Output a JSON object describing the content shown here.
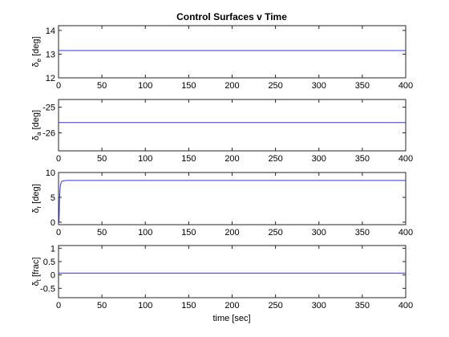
{
  "title": "Control Surfaces v Time",
  "xlabel": "time [sec]",
  "colors": {
    "line": "#3333ee",
    "axis": "#262626"
  },
  "chart_data": [
    {
      "type": "line",
      "title": "Control Surfaces v Time",
      "ylabel": {
        "sym": "δ",
        "sub": "e",
        "unit": " [deg]"
      },
      "xlim": [
        0,
        400
      ],
      "ylim": [
        12,
        14.2
      ],
      "xticks": [
        0,
        50,
        100,
        150,
        200,
        250,
        300,
        350,
        400
      ],
      "yticks": [
        12,
        13,
        14
      ],
      "series": [
        {
          "x": [
            0,
            400
          ],
          "y": [
            13.15,
            13.15
          ]
        }
      ]
    },
    {
      "type": "line",
      "ylabel": {
        "sym": "δ",
        "sub": "a",
        "unit": " [deg]"
      },
      "xlim": [
        0,
        400
      ],
      "ylim": [
        -26.7,
        -24.7
      ],
      "xticks": [
        0,
        50,
        100,
        150,
        200,
        250,
        300,
        350,
        400
      ],
      "yticks": [
        -26,
        -25
      ],
      "series": [
        {
          "x": [
            0,
            400
          ],
          "y": [
            -25.6,
            -25.6
          ]
        }
      ]
    },
    {
      "type": "line",
      "ylabel": {
        "sym": "δ",
        "sub": "r",
        "unit": " [deg]"
      },
      "xlim": [
        0,
        400
      ],
      "ylim": [
        -0.5,
        10
      ],
      "xticks": [
        0,
        50,
        100,
        150,
        200,
        250,
        300,
        350,
        400
      ],
      "yticks": [
        0,
        5,
        10
      ],
      "series": [
        {
          "x": [
            0,
            0.6,
            1.2,
            2,
            3,
            4,
            6,
            10,
            400
          ],
          "y": [
            0,
            0,
            5.0,
            7.2,
            8.0,
            8.25,
            8.35,
            8.4,
            8.4
          ]
        }
      ]
    },
    {
      "type": "line",
      "ylabel": {
        "sym": "δ",
        "sub": "t",
        "unit": " [frac]"
      },
      "xlim": [
        0,
        400
      ],
      "ylim": [
        -0.85,
        1.1
      ],
      "xticks": [
        0,
        50,
        100,
        150,
        200,
        250,
        300,
        350,
        400
      ],
      "yticks": [
        -0.5,
        0,
        0.5,
        1
      ],
      "series": [
        {
          "x": [
            0,
            400
          ],
          "y": [
            0.07,
            0.07
          ]
        }
      ]
    }
  ]
}
